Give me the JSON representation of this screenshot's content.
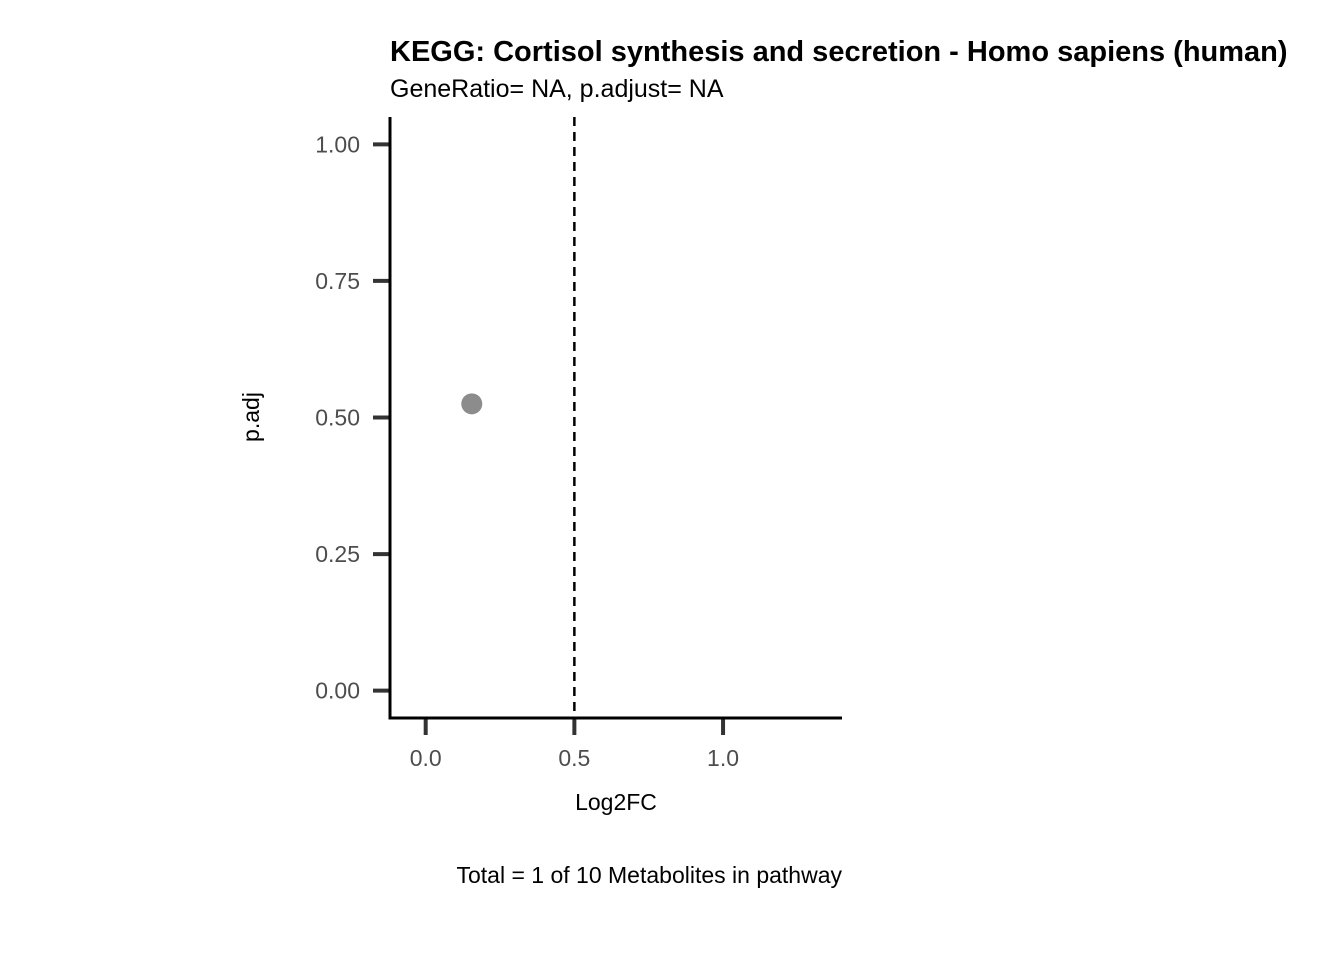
{
  "chart_data": {
    "type": "scatter",
    "title": "KEGG: Cortisol synthesis and secretion - Homo sapiens (human)",
    "subtitle": "GeneRatio= NA, p.adjust= NA",
    "xlabel": "Log2FC",
    "ylabel": "p.adj",
    "caption": "Total = 1 of 10 Metabolites in pathway",
    "xlim": [
      -0.12,
      1.4
    ],
    "ylim": [
      -0.05,
      1.05
    ],
    "xticks": [
      {
        "value": 0.0,
        "label": "0.0"
      },
      {
        "value": 0.5,
        "label": "0.5"
      },
      {
        "value": 1.0,
        "label": "1.0"
      }
    ],
    "yticks": [
      {
        "value": 0.0,
        "label": "0.00"
      },
      {
        "value": 0.25,
        "label": "0.25"
      },
      {
        "value": 0.5,
        "label": "0.50"
      },
      {
        "value": 0.75,
        "label": "0.75"
      },
      {
        "value": 1.0,
        "label": "1.00"
      }
    ],
    "vline": {
      "x": 0.5,
      "style": "dashed"
    },
    "points": [
      {
        "x": 0.155,
        "y": 0.525,
        "color": "#8c8c8c"
      }
    ],
    "grid": false
  }
}
